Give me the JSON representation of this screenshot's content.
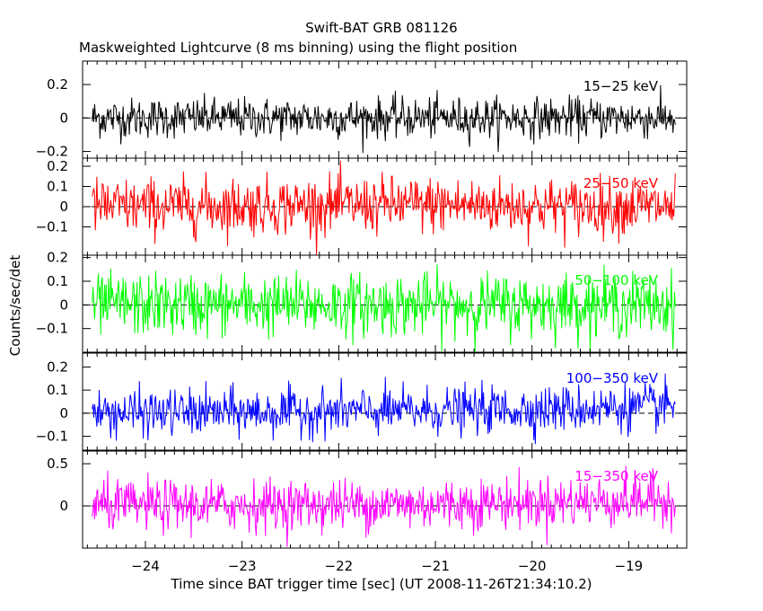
{
  "title": "Swift-BAT GRB 081126",
  "subtitle": "Maskweighted Lightcurve (8 ms binning) using the flight position",
  "ylabel": "Counts/sec/det",
  "xlabel": "Time since BAT trigger time [sec] (UT 2008-11-26T21:34:10.2)",
  "chart_data": {
    "type": "line",
    "title": "Swift-BAT GRB 081126",
    "subtitle": "Maskweighted Lightcurve (8 ms binning) using the flight position",
    "xlabel": "Time since BAT trigger time [sec] (UT 2008-11-26T21:34:10.2)",
    "ylabel": "Counts/sec/det",
    "xlim": [
      -24.65,
      -18.4
    ],
    "data_xrange": [
      -24.55,
      -18.52
    ],
    "bin_width_s": 0.008,
    "x_ticks": [
      -24,
      -23,
      -22,
      -21,
      -20,
      -19
    ],
    "x_tick_labels": [
      "−24",
      "−23",
      "−22",
      "−21",
      "−20",
      "−19"
    ],
    "panels": [
      {
        "name": "15-25 keV",
        "label": "15−25 keV",
        "color": "#000000",
        "ylim": [
          -0.24,
          0.34
        ],
        "y_ticks": [
          -0.2,
          0,
          0.2
        ],
        "y_tick_labels": [
          "−0.2",
          "0",
          "0.2"
        ],
        "noise_sigma": 0.06,
        "trend": [
          [
            -24.55,
            0.0
          ],
          [
            -21.0,
            0.0
          ],
          [
            -19.5,
            0.0
          ],
          [
            -18.52,
            0.0
          ]
        ]
      },
      {
        "name": "25-50 keV",
        "label": "25−50 keV",
        "color": "#ff0000",
        "ylim": [
          -0.24,
          0.24
        ],
        "y_ticks": [
          -0.1,
          0,
          0.1,
          0.2
        ],
        "y_tick_labels": [
          "−0.1",
          "0",
          "0.1",
          "0.2"
        ],
        "noise_sigma": 0.07,
        "trend": [
          [
            -24.55,
            0.0
          ],
          [
            -21.0,
            0.01
          ],
          [
            -19.5,
            0.0
          ],
          [
            -18.52,
            0.0
          ]
        ]
      },
      {
        "name": "50-100 keV",
        "label": "50−100 keV",
        "color": "#00ff00",
        "ylim": [
          -0.2,
          0.21
        ],
        "y_ticks": [
          -0.1,
          0,
          0.1,
          0.2
        ],
        "y_tick_labels": [
          "−0.1",
          "0",
          "0.1",
          "0.2"
        ],
        "noise_sigma": 0.065,
        "trend": [
          [
            -24.55,
            0.0
          ],
          [
            -21.0,
            0.0
          ],
          [
            -19.5,
            0.0
          ],
          [
            -18.52,
            0.0
          ]
        ]
      },
      {
        "name": "100-350 keV",
        "label": "100−350 keV",
        "color": "#0000ff",
        "ylim": [
          -0.16,
          0.26
        ],
        "y_ticks": [
          -0.1,
          0,
          0.1,
          0.2
        ],
        "y_tick_labels": [
          "−0.1",
          "0",
          "0.1",
          "0.2"
        ],
        "noise_sigma": 0.05,
        "trend": [
          [
            -24.55,
            0.0
          ],
          [
            -21.0,
            0.01
          ],
          [
            -19.5,
            0.02
          ],
          [
            -18.52,
            0.03
          ]
        ]
      },
      {
        "name": "15-350 keV",
        "label": "15−350 keV",
        "color": "#ff00ff",
        "ylim": [
          -0.5,
          0.65
        ],
        "y_ticks": [
          0,
          0.5
        ],
        "y_tick_labels": [
          "0",
          "0.5"
        ],
        "noise_sigma": 0.15,
        "trend": [
          [
            -24.55,
            0.0
          ],
          [
            -21.0,
            0.02
          ],
          [
            -19.5,
            0.05
          ],
          [
            -18.52,
            0.08
          ]
        ]
      }
    ]
  }
}
